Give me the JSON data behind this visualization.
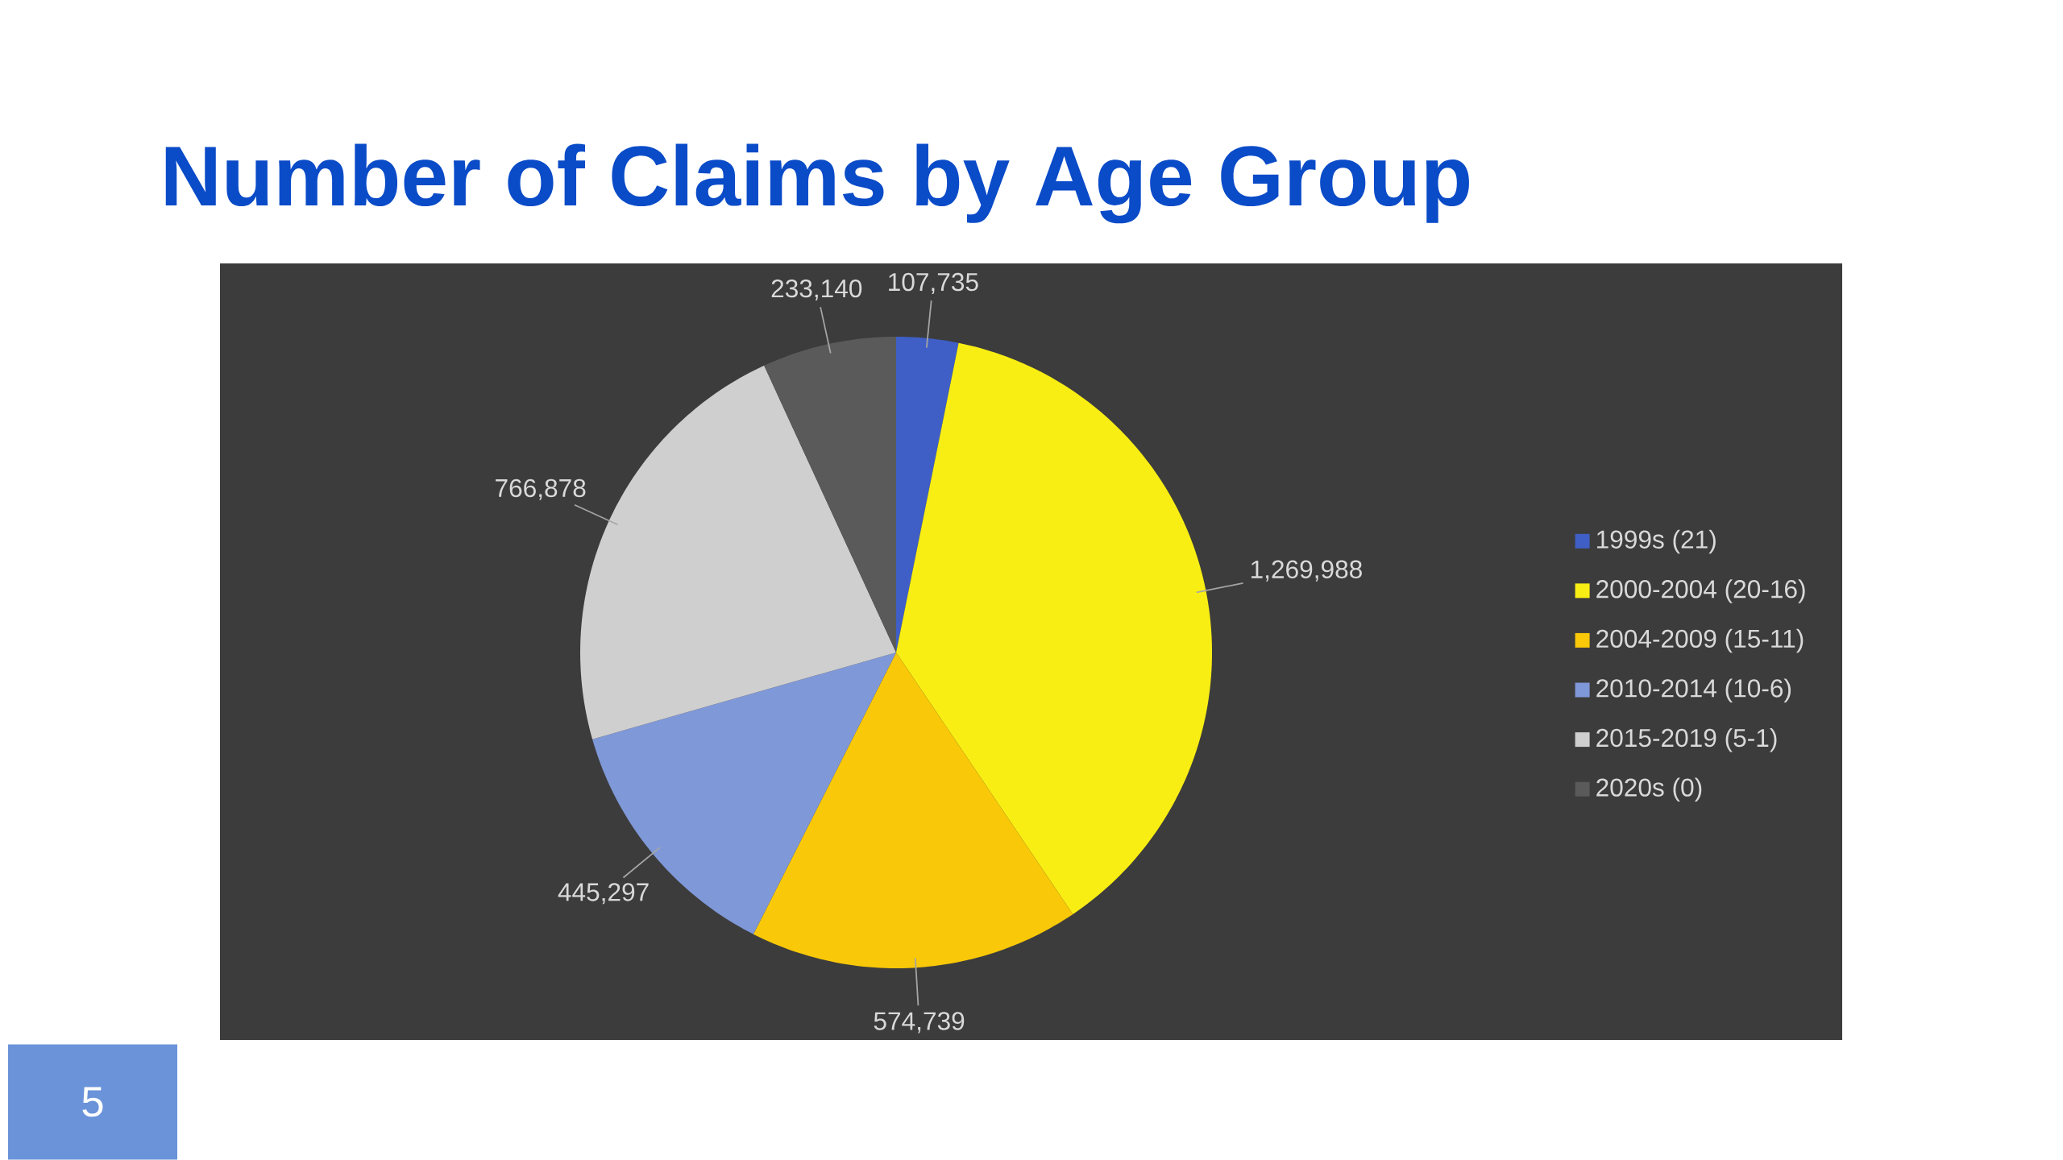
{
  "chart_data": {
    "type": "pie",
    "title": "Number of Claims by Age Group",
    "categories": [
      "1999s (21)",
      "2000-2004 (20-16)",
      "2004-2009 (15-11)",
      "2010-2014 (10-6)",
      "2015-2019 (5-1)",
      "2020s (0)"
    ],
    "values": [
      107735,
      1269988,
      574739,
      445297,
      766878,
      233140
    ],
    "value_labels": [
      "107,735",
      "1,269,988",
      "574,739",
      "445,297",
      "766,878",
      "233,140"
    ],
    "colors": [
      "#3f5fc6",
      "#f9ee14",
      "#f9c808",
      "#7f98d8",
      "#cfcfcf",
      "#5a5a5a"
    ],
    "legend": "right",
    "annotations": [
      "5"
    ]
  }
}
